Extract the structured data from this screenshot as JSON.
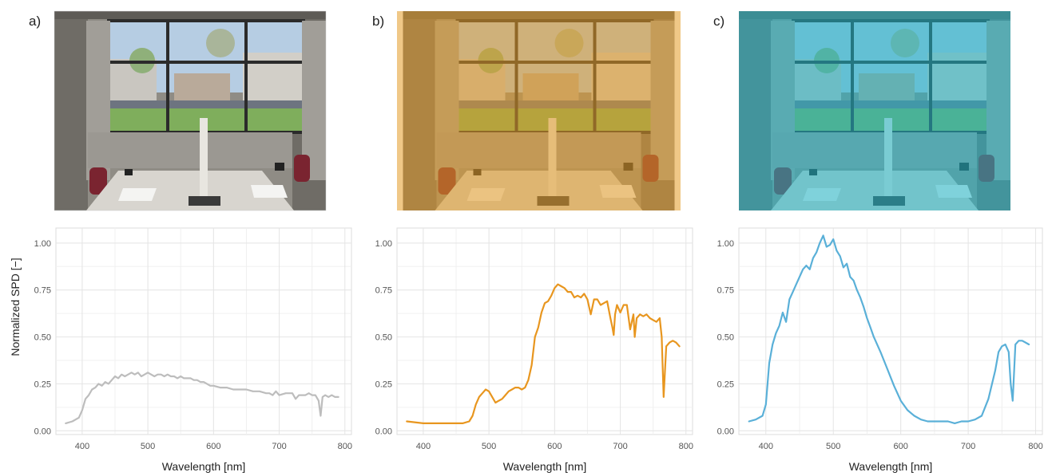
{
  "figure": {
    "colors": {
      "neutral": "#bdbdbd",
      "orange": "#e8961f",
      "blue": "#5ab0d8"
    },
    "ylabel": "Normalized SPD [−]"
  },
  "photos": [
    {
      "label": "a)",
      "tint": "neutral"
    },
    {
      "label": "b)",
      "tint": "orange"
    },
    {
      "label": "c)",
      "tint": "blue"
    }
  ],
  "chart_data": [
    {
      "type": "line",
      "panel": "a)",
      "xlabel": "Wavelength [nm]",
      "ylabel": "Normalized SPD [−]",
      "xlim": [
        360,
        810
      ],
      "ylim": [
        -0.02,
        1.08
      ],
      "x_ticks": [
        400,
        500,
        600,
        700,
        800
      ],
      "y_ticks": [
        0.0,
        0.25,
        0.5,
        0.75,
        1.0
      ],
      "x_tick_labels": [
        "400",
        "500",
        "600",
        "700",
        "800"
      ],
      "y_tick_labels": [
        "0.00",
        "0.25",
        "0.50",
        "0.75",
        "1.00"
      ],
      "grid": true,
      "series": [
        {
          "color": "#bdbdbd",
          "x": [
            375,
            385,
            395,
            400,
            405,
            410,
            415,
            420,
            425,
            430,
            435,
            440,
            445,
            450,
            455,
            460,
            465,
            470,
            475,
            480,
            485,
            490,
            495,
            500,
            505,
            510,
            515,
            520,
            525,
            530,
            535,
            540,
            545,
            550,
            555,
            560,
            565,
            570,
            575,
            580,
            585,
            590,
            595,
            600,
            610,
            620,
            630,
            640,
            650,
            660,
            670,
            680,
            685,
            690,
            695,
            700,
            710,
            720,
            725,
            730,
            735,
            740,
            745,
            750,
            755,
            760,
            763,
            766,
            770,
            775,
            780,
            785,
            790
          ],
          "y": [
            0.04,
            0.05,
            0.07,
            0.11,
            0.17,
            0.19,
            0.22,
            0.23,
            0.25,
            0.24,
            0.26,
            0.25,
            0.27,
            0.29,
            0.28,
            0.3,
            0.29,
            0.3,
            0.31,
            0.3,
            0.31,
            0.29,
            0.3,
            0.31,
            0.3,
            0.29,
            0.3,
            0.3,
            0.29,
            0.3,
            0.29,
            0.29,
            0.28,
            0.29,
            0.28,
            0.28,
            0.28,
            0.27,
            0.27,
            0.26,
            0.26,
            0.25,
            0.24,
            0.24,
            0.23,
            0.23,
            0.22,
            0.22,
            0.22,
            0.21,
            0.21,
            0.2,
            0.2,
            0.19,
            0.21,
            0.19,
            0.2,
            0.2,
            0.17,
            0.19,
            0.19,
            0.19,
            0.2,
            0.19,
            0.19,
            0.16,
            0.08,
            0.18,
            0.19,
            0.18,
            0.19,
            0.18,
            0.18
          ]
        }
      ]
    },
    {
      "type": "line",
      "panel": "b)",
      "xlabel": "Wavelength [nm]",
      "xlim": [
        360,
        810
      ],
      "ylim": [
        -0.02,
        1.08
      ],
      "x_ticks": [
        400,
        500,
        600,
        700,
        800
      ],
      "y_ticks": [
        0.0,
        0.25,
        0.5,
        0.75,
        1.0
      ],
      "x_tick_labels": [
        "400",
        "500",
        "600",
        "700",
        "800"
      ],
      "y_tick_labels": [
        "0.00",
        "0.25",
        "0.50",
        "0.75",
        "1.00"
      ],
      "grid": true,
      "series": [
        {
          "color": "#e8961f",
          "x": [
            375,
            400,
            420,
            440,
            460,
            470,
            475,
            480,
            485,
            490,
            495,
            500,
            505,
            510,
            515,
            520,
            525,
            530,
            535,
            540,
            545,
            550,
            555,
            560,
            565,
            570,
            575,
            580,
            585,
            590,
            595,
            600,
            605,
            610,
            615,
            620,
            625,
            630,
            635,
            640,
            645,
            650,
            655,
            660,
            665,
            670,
            675,
            680,
            685,
            688,
            690,
            692,
            695,
            700,
            705,
            710,
            715,
            720,
            722,
            725,
            730,
            735,
            740,
            745,
            750,
            755,
            760,
            763,
            766,
            768,
            770,
            775,
            780,
            785,
            790
          ],
          "y": [
            0.05,
            0.04,
            0.04,
            0.04,
            0.04,
            0.05,
            0.08,
            0.14,
            0.18,
            0.2,
            0.22,
            0.21,
            0.18,
            0.15,
            0.16,
            0.17,
            0.19,
            0.21,
            0.22,
            0.23,
            0.23,
            0.22,
            0.23,
            0.27,
            0.35,
            0.5,
            0.55,
            0.63,
            0.68,
            0.69,
            0.72,
            0.76,
            0.78,
            0.77,
            0.76,
            0.74,
            0.74,
            0.71,
            0.72,
            0.71,
            0.73,
            0.7,
            0.62,
            0.7,
            0.7,
            0.67,
            0.68,
            0.69,
            0.6,
            0.55,
            0.51,
            0.62,
            0.67,
            0.63,
            0.67,
            0.67,
            0.54,
            0.62,
            0.5,
            0.6,
            0.62,
            0.61,
            0.62,
            0.6,
            0.59,
            0.58,
            0.6,
            0.5,
            0.18,
            0.32,
            0.45,
            0.47,
            0.48,
            0.47,
            0.45
          ]
        }
      ]
    },
    {
      "type": "line",
      "panel": "c)",
      "xlabel": "Wavelength [nm]",
      "xlim": [
        360,
        810
      ],
      "ylim": [
        -0.02,
        1.08
      ],
      "x_ticks": [
        400,
        500,
        600,
        700,
        800
      ],
      "y_ticks": [
        0.0,
        0.25,
        0.5,
        0.75,
        1.0
      ],
      "x_tick_labels": [
        "400",
        "500",
        "600",
        "700",
        "800"
      ],
      "y_tick_labels": [
        "0.00",
        "0.25",
        "0.50",
        "0.75",
        "1.00"
      ],
      "grid": true,
      "series": [
        {
          "color": "#5ab0d8",
          "x": [
            375,
            385,
            395,
            400,
            405,
            410,
            415,
            420,
            425,
            430,
            435,
            440,
            445,
            450,
            455,
            460,
            465,
            470,
            475,
            480,
            485,
            490,
            495,
            500,
            505,
            510,
            515,
            520,
            525,
            530,
            535,
            540,
            545,
            550,
            555,
            560,
            570,
            580,
            590,
            600,
            610,
            620,
            630,
            640,
            650,
            660,
            670,
            680,
            690,
            700,
            710,
            720,
            730,
            740,
            745,
            750,
            755,
            760,
            763,
            766,
            770,
            775,
            780,
            785,
            790
          ],
          "y": [
            0.05,
            0.06,
            0.08,
            0.14,
            0.36,
            0.46,
            0.52,
            0.56,
            0.63,
            0.58,
            0.7,
            0.74,
            0.78,
            0.82,
            0.86,
            0.88,
            0.86,
            0.92,
            0.95,
            1.0,
            1.04,
            0.98,
            0.99,
            1.02,
            0.96,
            0.93,
            0.87,
            0.89,
            0.82,
            0.8,
            0.75,
            0.71,
            0.66,
            0.6,
            0.55,
            0.5,
            0.42,
            0.33,
            0.24,
            0.16,
            0.11,
            0.08,
            0.06,
            0.05,
            0.05,
            0.05,
            0.05,
            0.04,
            0.05,
            0.05,
            0.06,
            0.08,
            0.17,
            0.32,
            0.42,
            0.45,
            0.46,
            0.42,
            0.25,
            0.16,
            0.46,
            0.48,
            0.48,
            0.47,
            0.46
          ]
        }
      ]
    }
  ]
}
